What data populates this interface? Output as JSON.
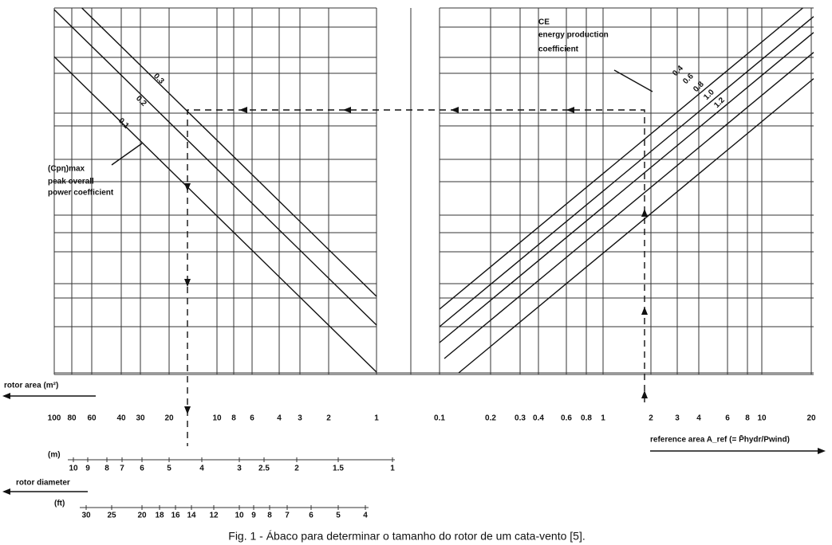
{
  "diagram": {
    "rotor_area_axis": {
      "label": "rotor area (m²)",
      "ticks": [
        "100",
        "80",
        "60",
        "40",
        "30",
        "20",
        "10",
        "8",
        "6",
        "4",
        "3",
        "2",
        "1"
      ]
    },
    "reference_axis": {
      "label": "reference area A_ref (= P̄hydr/Pwind)",
      "ticks": [
        "0.1",
        "0.2",
        "0.3",
        "0.4",
        "0.6",
        "0.8",
        "1",
        "2",
        "3",
        "4",
        "6",
        "8",
        "10",
        "20"
      ]
    },
    "diameter_axis": {
      "label": "rotor diameter",
      "m_unit": "(m)",
      "m_ticks": [
        "10",
        "9",
        "8",
        "7",
        "6",
        "5",
        "4",
        "3",
        "2.5",
        "2",
        "1.5",
        "1"
      ],
      "ft_unit": "(ft)",
      "ft_ticks": [
        "30",
        "25",
        "20",
        "18",
        "16",
        "14",
        "12",
        "10",
        "9",
        "8",
        "7",
        "6",
        "5",
        "4"
      ]
    },
    "cp_legend": {
      "symbol": "(Cpη)max",
      "lines": [
        "peak overall",
        "power coefficient"
      ],
      "curves": [
        "0.1",
        "0.2",
        "0.3"
      ]
    },
    "ce_legend": {
      "symbol": "CE",
      "lines": [
        "energy production",
        "coefficient"
      ],
      "curves": [
        "0.4",
        "0.6",
        "0.8",
        "1.0",
        "1.2"
      ]
    },
    "caption": "Fig. 1 - Ábaco para determinar o tamanho do rotor de um cata-vento [5]."
  }
}
